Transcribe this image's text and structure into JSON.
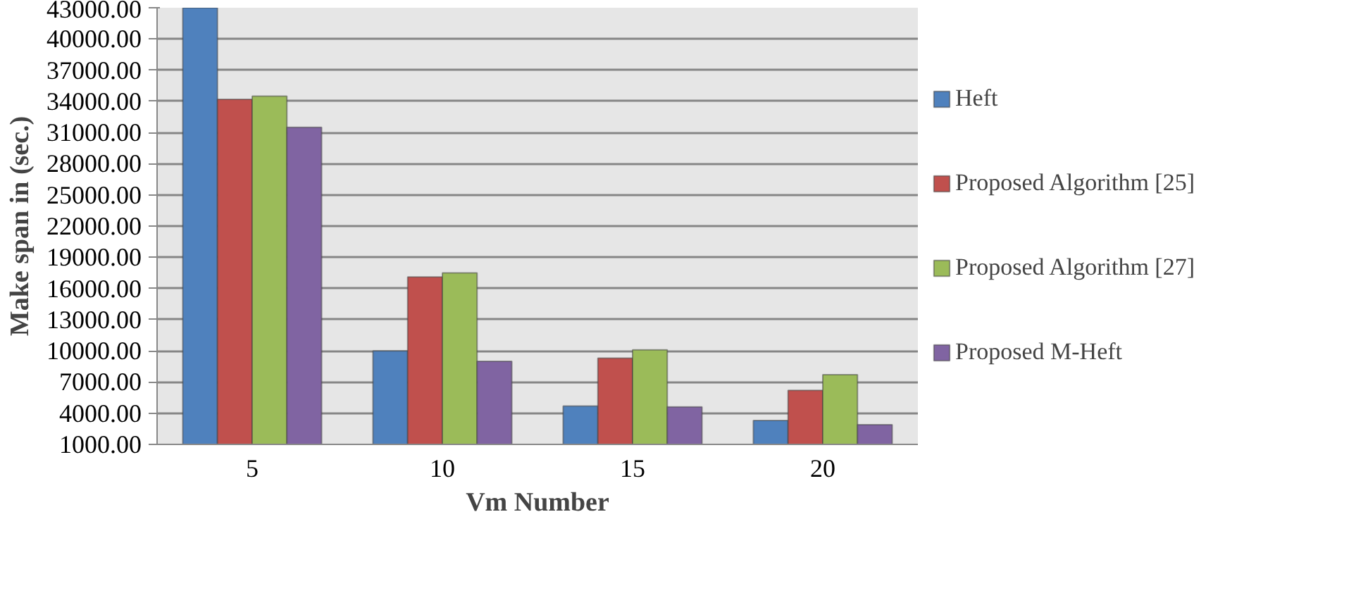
{
  "chart_data": {
    "type": "bar",
    "xlabel": "Vm Number",
    "ylabel": "Make span in (sec.)",
    "categories": [
      "5",
      "10",
      "15",
      "20"
    ],
    "series": [
      {
        "name": "Heft",
        "color": "#4f81bd",
        "values": [
          43000,
          10000,
          4700,
          3300
        ]
      },
      {
        "name": "Proposed Algorithm [25]",
        "color": "#c0504d",
        "values": [
          34200,
          17100,
          9300,
          6200
        ]
      },
      {
        "name": "Proposed Algorithm [27]",
        "color": "#9bbb59",
        "values": [
          34500,
          17500,
          10100,
          7700
        ]
      },
      {
        "name": "Proposed M-Heft",
        "color": "#8064a2",
        "values": [
          31500,
          9000,
          4600,
          2900
        ]
      }
    ],
    "ylim": [
      1000,
      43000
    ],
    "yticks": [
      {
        "value": 1000,
        "label": "1000.00"
      },
      {
        "value": 4000,
        "label": "4000.00"
      },
      {
        "value": 7000,
        "label": "7000.00"
      },
      {
        "value": 10000,
        "label": "10000.00"
      },
      {
        "value": 13000,
        "label": "13000.00"
      },
      {
        "value": 16000,
        "label": "16000.00"
      },
      {
        "value": 19000,
        "label": "19000.00"
      },
      {
        "value": 22000,
        "label": "22000.00"
      },
      {
        "value": 25000,
        "label": "25000.00"
      },
      {
        "value": 28000,
        "label": "28000.00"
      },
      {
        "value": 31000,
        "label": "31000.00"
      },
      {
        "value": 34000,
        "label": "34000.00"
      },
      {
        "value": 37000,
        "label": "37000.00"
      },
      {
        "value": 40000,
        "label": "40000.00"
      },
      {
        "value": 43000,
        "label": "43000.00"
      }
    ],
    "grid": "y",
    "legend": "right"
  }
}
